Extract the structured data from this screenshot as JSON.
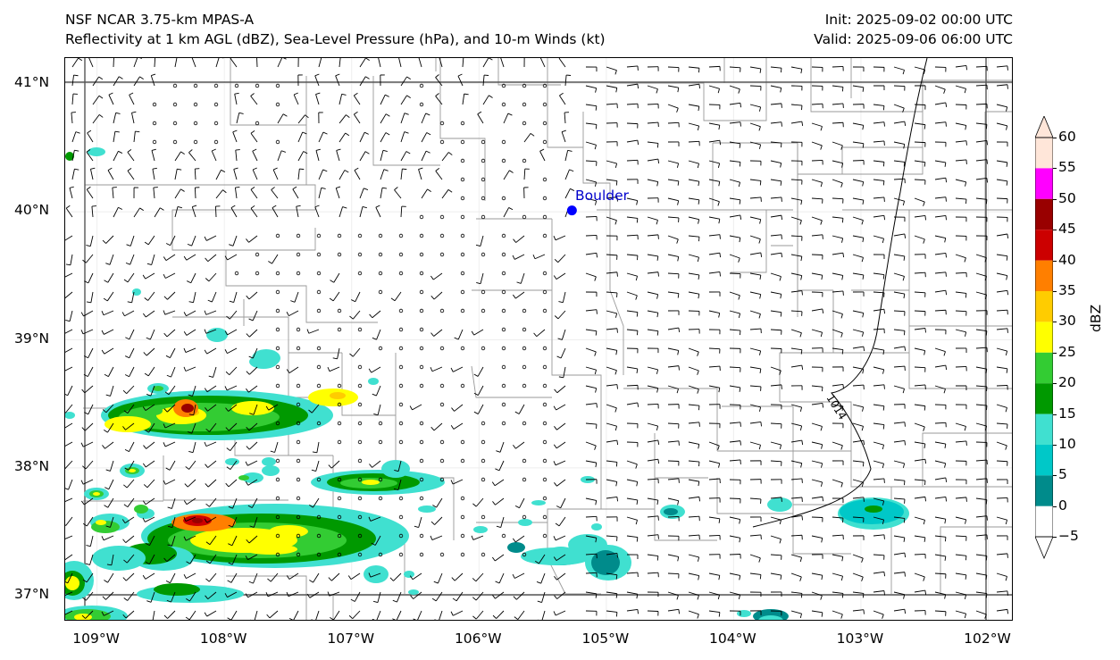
{
  "header": {
    "model": "NSF NCAR 3.75-km MPAS-A",
    "fields": "Reflectivity at 1 km AGL (dBZ), Sea-Level Pressure (hPa), and 10-m Winds (kt)",
    "init": "Init: 2025-09-02 00:00 UTC",
    "valid": "Valid: 2025-09-06 06:00 UTC"
  },
  "map": {
    "lon_range": [
      -109.25,
      -101.8
    ],
    "lat_range": [
      36.8,
      41.2
    ],
    "lat_ticks": [
      {
        "value": 41,
        "label": "41°N"
      },
      {
        "value": 40,
        "label": "40°N"
      },
      {
        "value": 39,
        "label": "39°N"
      },
      {
        "value": 38,
        "label": "38°N"
      },
      {
        "value": 37,
        "label": "37°N"
      }
    ],
    "lon_ticks": [
      {
        "value": -109,
        "label": "109°W"
      },
      {
        "value": -108,
        "label": "108°W"
      },
      {
        "value": -107,
        "label": "107°W"
      },
      {
        "value": -106,
        "label": "106°W"
      },
      {
        "value": -105,
        "label": "105°W"
      },
      {
        "value": -104,
        "label": "104°W"
      },
      {
        "value": -103,
        "label": "103°W"
      },
      {
        "value": -102,
        "label": "102°W"
      }
    ],
    "city": {
      "name": "Boulder",
      "lon": -105.27,
      "lat": 40.01,
      "color": "#0000ff"
    },
    "isobar_label": "1014",
    "state_border_color": "#555555",
    "county_border_color": "#999999"
  },
  "colorbar": {
    "title": "dBZ",
    "levels": [
      "60",
      "55",
      "50",
      "45",
      "40",
      "35",
      "30",
      "25",
      "20",
      "15",
      "10",
      "5",
      "0",
      "−5"
    ],
    "colors": [
      "#ffe6d9",
      "#ff00ff",
      "#990000",
      "#cc0000",
      "#ff7f00",
      "#ffcc00",
      "#ffff00",
      "#33cc33",
      "#009900",
      "#40e0d0",
      "#00c8c8",
      "#008b8b",
      "#ffffff"
    ]
  }
}
